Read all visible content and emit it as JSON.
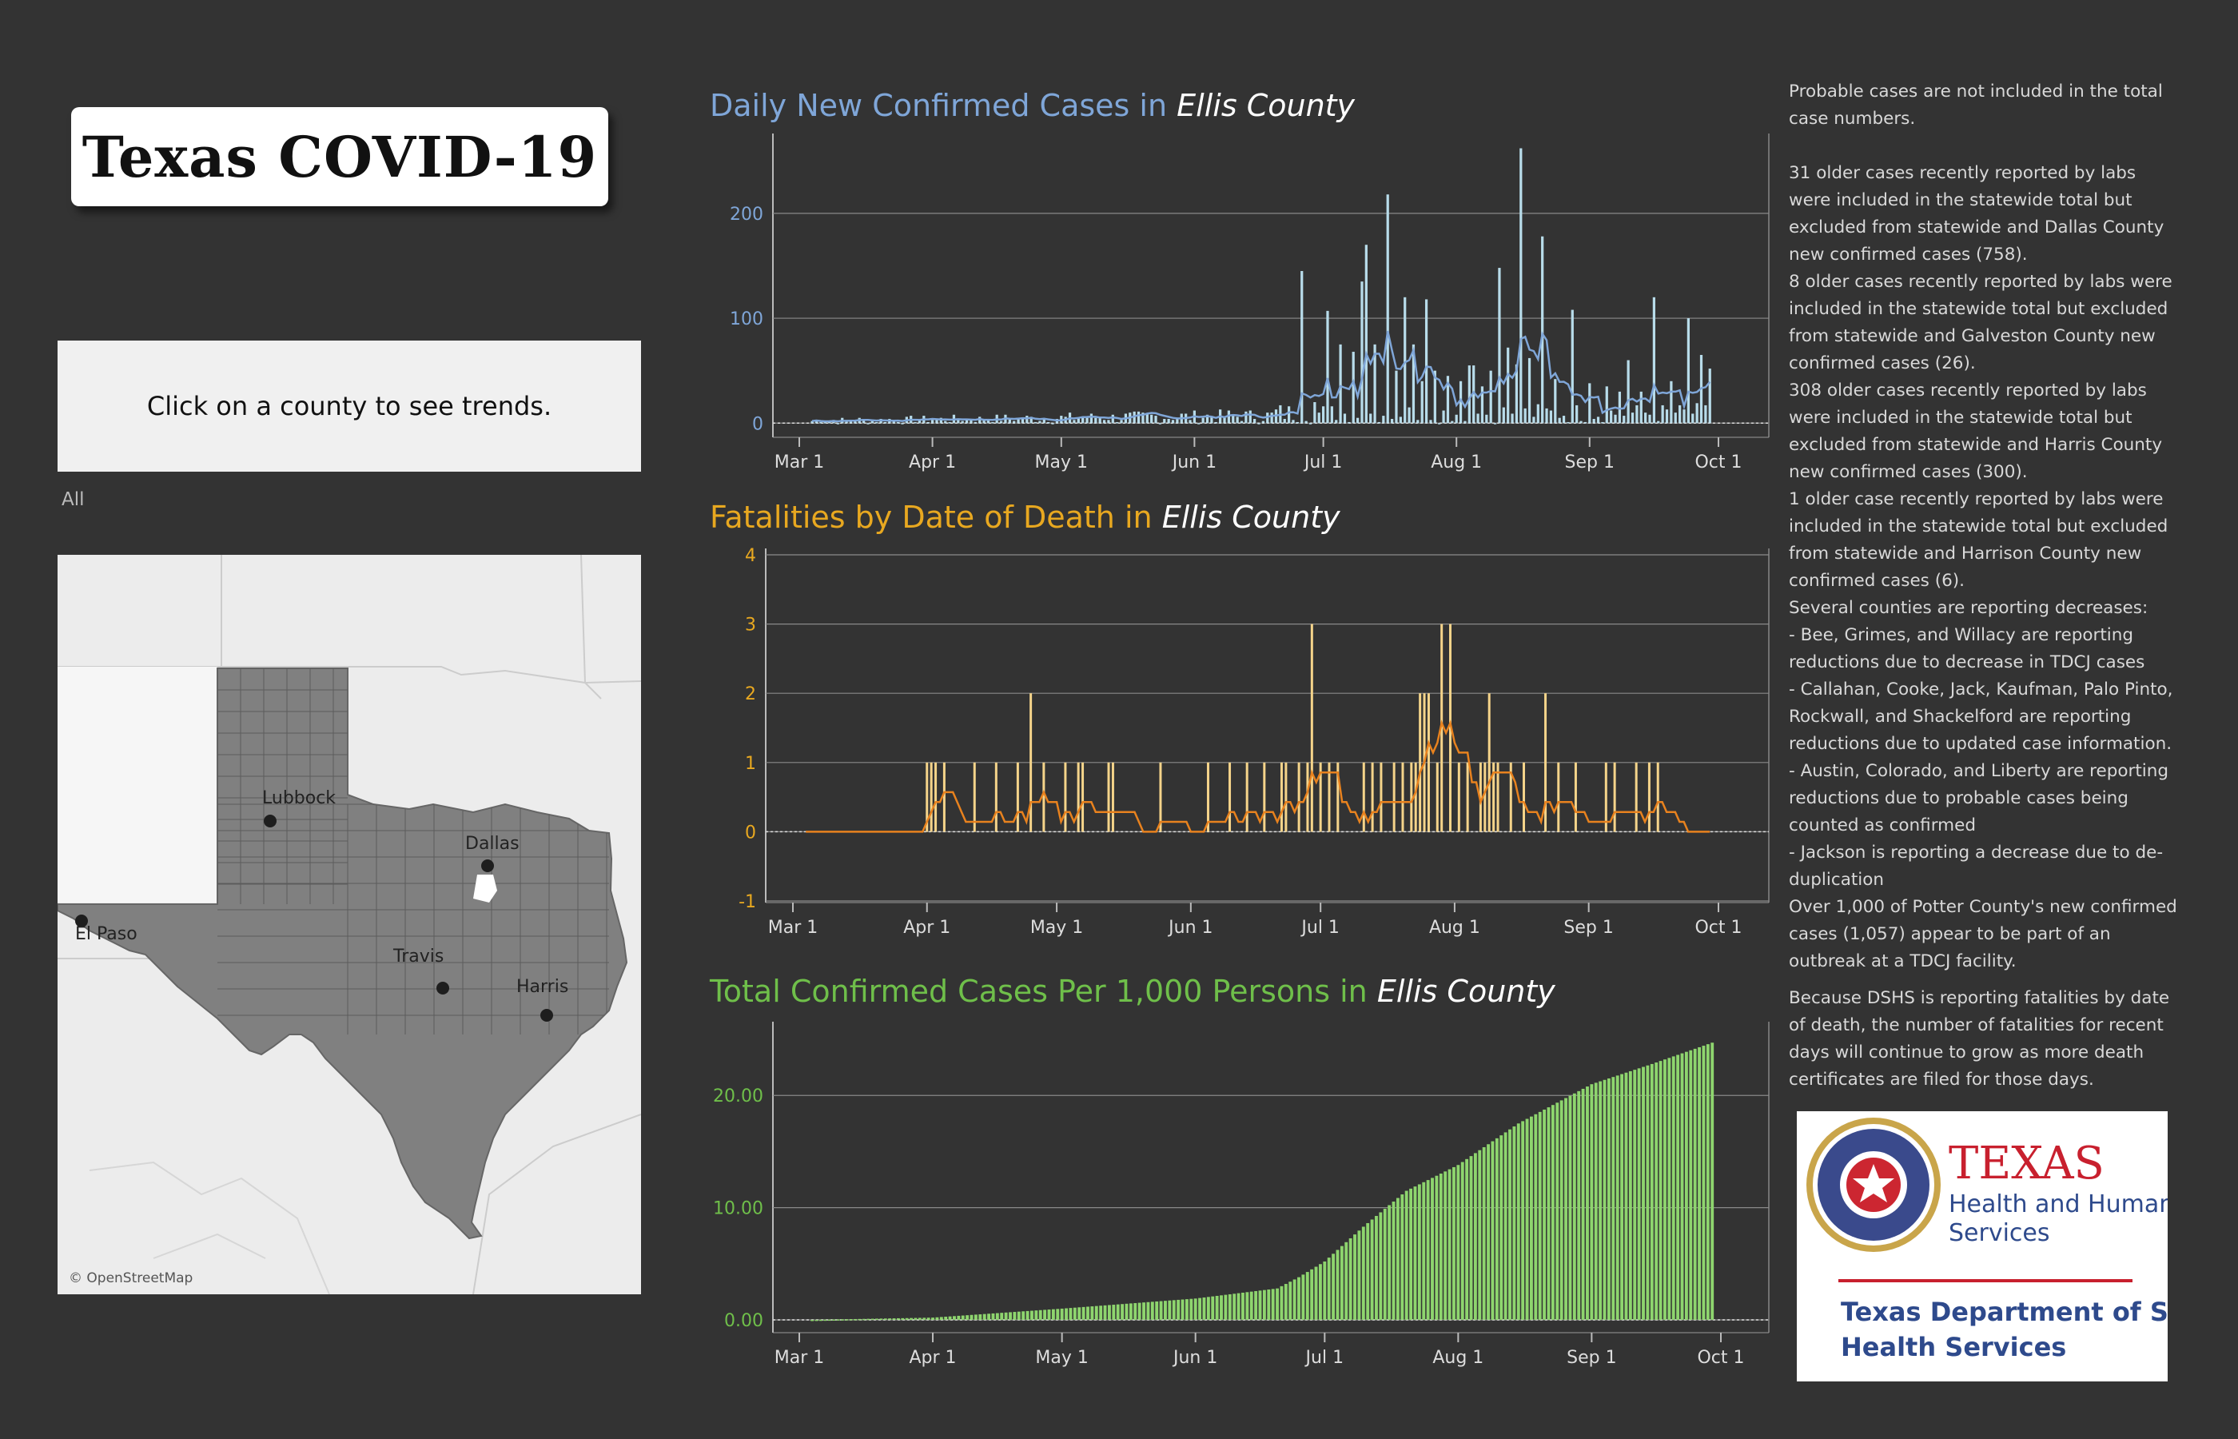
{
  "title": "Texas COVID-19",
  "instruction": "Click on a county to see trends.",
  "filter_label": "All",
  "map": {
    "attribution": "© OpenStreetMap",
    "cities": [
      "Lubbock",
      "Dallas",
      "El Paso",
      "Travis",
      "Harris"
    ]
  },
  "charts": {
    "daily": {
      "prefix": "Daily New Confirmed Cases in ",
      "county": "Ellis County",
      "color": "#7fa6d8"
    },
    "deaths": {
      "prefix": "Fatalities by Date of Death in ",
      "county": "Ellis County",
      "color": "#f0b020"
    },
    "total": {
      "prefix": "Total Confirmed Cases Per 1,000 Persons in ",
      "county": "Ellis County",
      "color": "#6fbf4a"
    }
  },
  "notes": [
    "Probable cases are not included in the total case numbers.",
    "31 older cases recently reported by labs were included in the statewide total but excluded from statewide and Dallas County new confirmed cases (758).",
    "8 older cases recently reported by labs were included in the statewide total but excluded from statewide and Galveston County new confirmed cases (26).",
    "308 older cases recently reported by labs were included in the statewide total but excluded from statewide and Harris County new confirmed cases (300).",
    "1 older case recently reported by labs were included in the statewide total but excluded from statewide and Harrison County new confirmed cases (6).",
    "Several counties are reporting decreases:",
    " - Bee, Grimes, and Willacy are reporting reductions due to decrease in TDCJ cases",
    " - Callahan, Cooke, Jack, Kaufman, Palo Pinto, Rockwall, and Shackelford are reporting reductions due to updated case information.",
    " - Austin, Colorado, and Liberty are reporting reductions due to probable cases being counted as confirmed",
    " - Jackson is reporting a decrease due to de-duplication",
    "Over 1,000 of Potter County's new confirmed cases (1,057) appear to be part of an outbreak at a TDCJ facility.",
    "Because DSHS is reporting fatalities by date of death, the number of fatalities for recent days will continue to grow as more death certificates are filed for those days."
  ],
  "logo": {
    "line1": "TEXAS",
    "line2": "Health and Human",
    "line3": "Services",
    "line4": "Texas Department of State",
    "line5": "Health Services"
  },
  "chart_data": [
    {
      "type": "bar",
      "title": "Daily New Confirmed Cases in Ellis County",
      "x_ticks": [
        "Mar 1",
        "Apr 1",
        "May 1",
        "Jun 1",
        "Jul 1",
        "Aug 1",
        "Sep 1",
        "Oct 1"
      ],
      "y_ticks": [
        0,
        100,
        200
      ],
      "ylim": [
        -10,
        280
      ],
      "x_range": [
        "2020-03-04",
        "2020-09-29"
      ],
      "bar_color": "#b8dcea",
      "line_color": "#7fa6d8",
      "grid": true,
      "spikes": [
        {
          "date": "2020-06-26",
          "value": 145
        },
        {
          "date": "2020-06-29",
          "value": 20
        },
        {
          "date": "2020-07-02",
          "value": 107
        },
        {
          "date": "2020-07-05",
          "value": 75
        },
        {
          "date": "2020-07-08",
          "value": 68
        },
        {
          "date": "2020-07-10",
          "value": 135
        },
        {
          "date": "2020-07-11",
          "value": 170
        },
        {
          "date": "2020-07-13",
          "value": 75
        },
        {
          "date": "2020-07-16",
          "value": 218
        },
        {
          "date": "2020-07-18",
          "value": 50
        },
        {
          "date": "2020-07-20",
          "value": 120
        },
        {
          "date": "2020-07-22",
          "value": 75
        },
        {
          "date": "2020-07-24",
          "value": 40
        },
        {
          "date": "2020-07-25",
          "value": 118
        },
        {
          "date": "2020-07-27",
          "value": 50
        },
        {
          "date": "2020-07-30",
          "value": 45
        },
        {
          "date": "2020-08-02",
          "value": 40
        },
        {
          "date": "2020-08-04",
          "value": 55
        },
        {
          "date": "2020-08-05",
          "value": 55
        },
        {
          "date": "2020-08-07",
          "value": 35
        },
        {
          "date": "2020-08-09",
          "value": 50
        },
        {
          "date": "2020-08-11",
          "value": 148
        },
        {
          "date": "2020-08-13",
          "value": 72
        },
        {
          "date": "2020-08-15",
          "value": 56
        },
        {
          "date": "2020-08-16",
          "value": 262
        },
        {
          "date": "2020-08-18",
          "value": 62
        },
        {
          "date": "2020-08-21",
          "value": 178
        },
        {
          "date": "2020-08-24",
          "value": 42
        },
        {
          "date": "2020-08-28",
          "value": 108
        },
        {
          "date": "2020-09-01",
          "value": 38
        },
        {
          "date": "2020-09-05",
          "value": 35
        },
        {
          "date": "2020-09-08",
          "value": 30
        },
        {
          "date": "2020-09-10",
          "value": 60
        },
        {
          "date": "2020-09-13",
          "value": 30
        },
        {
          "date": "2020-09-16",
          "value": 120
        },
        {
          "date": "2020-09-20",
          "value": 40
        },
        {
          "date": "2020-09-24",
          "value": 100
        },
        {
          "date": "2020-09-27",
          "value": 65
        },
        {
          "date": "2020-09-29",
          "value": 52
        }
      ]
    },
    {
      "type": "bar",
      "title": "Fatalities by Date of Death in Ellis County",
      "x_ticks": [
        "Mar 1",
        "Apr 1",
        "May 1",
        "Jun 1",
        "Jul 1",
        "Aug 1",
        "Sep 1",
        "Oct 1"
      ],
      "y_ticks": [
        -1,
        0,
        1,
        2,
        3,
        4
      ],
      "ylim": [
        -1,
        4
      ],
      "x_range": [
        "2020-03-04",
        "2020-09-29"
      ],
      "bar_color": "#f5d48a",
      "line_color": "#e8821e",
      "grid": true,
      "deaths": [
        {
          "date": "2020-04-01",
          "value": 1
        },
        {
          "date": "2020-04-02",
          "value": 1
        },
        {
          "date": "2020-04-03",
          "value": 1
        },
        {
          "date": "2020-04-05",
          "value": 1
        },
        {
          "date": "2020-04-12",
          "value": 1
        },
        {
          "date": "2020-04-17",
          "value": 1
        },
        {
          "date": "2020-04-22",
          "value": 1
        },
        {
          "date": "2020-04-25",
          "value": 2
        },
        {
          "date": "2020-04-28",
          "value": 1
        },
        {
          "date": "2020-05-03",
          "value": 1
        },
        {
          "date": "2020-05-06",
          "value": 1
        },
        {
          "date": "2020-05-07",
          "value": 1
        },
        {
          "date": "2020-05-13",
          "value": 1
        },
        {
          "date": "2020-05-14",
          "value": 1
        },
        {
          "date": "2020-05-25",
          "value": 1
        },
        {
          "date": "2020-06-05",
          "value": 1
        },
        {
          "date": "2020-06-10",
          "value": 1
        },
        {
          "date": "2020-06-14",
          "value": 1
        },
        {
          "date": "2020-06-18",
          "value": 1
        },
        {
          "date": "2020-06-22",
          "value": 1
        },
        {
          "date": "2020-06-23",
          "value": 1
        },
        {
          "date": "2020-06-26",
          "value": 1
        },
        {
          "date": "2020-06-28",
          "value": 1
        },
        {
          "date": "2020-06-29",
          "value": 3
        },
        {
          "date": "2020-07-01",
          "value": 1
        },
        {
          "date": "2020-07-03",
          "value": 1
        },
        {
          "date": "2020-07-05",
          "value": 1
        },
        {
          "date": "2020-07-11",
          "value": 1
        },
        {
          "date": "2020-07-13",
          "value": 1
        },
        {
          "date": "2020-07-15",
          "value": 1
        },
        {
          "date": "2020-07-18",
          "value": 1
        },
        {
          "date": "2020-07-20",
          "value": 1
        },
        {
          "date": "2020-07-22",
          "value": 1
        },
        {
          "date": "2020-07-23",
          "value": 1
        },
        {
          "date": "2020-07-24",
          "value": 2
        },
        {
          "date": "2020-07-25",
          "value": 2
        },
        {
          "date": "2020-07-26",
          "value": 2
        },
        {
          "date": "2020-07-28",
          "value": 1
        },
        {
          "date": "2020-07-29",
          "value": 3
        },
        {
          "date": "2020-07-31",
          "value": 3
        },
        {
          "date": "2020-08-02",
          "value": 1
        },
        {
          "date": "2020-08-04",
          "value": 1
        },
        {
          "date": "2020-08-07",
          "value": 1
        },
        {
          "date": "2020-08-08",
          "value": 1
        },
        {
          "date": "2020-08-09",
          "value": 2
        },
        {
          "date": "2020-08-10",
          "value": 1
        },
        {
          "date": "2020-08-11",
          "value": 1
        },
        {
          "date": "2020-08-14",
          "value": 1
        },
        {
          "date": "2020-08-17",
          "value": 1
        },
        {
          "date": "2020-08-22",
          "value": 2
        },
        {
          "date": "2020-08-25",
          "value": 1
        },
        {
          "date": "2020-08-29",
          "value": 1
        },
        {
          "date": "2020-09-05",
          "value": 1
        },
        {
          "date": "2020-09-07",
          "value": 1
        },
        {
          "date": "2020-09-12",
          "value": 1
        },
        {
          "date": "2020-09-15",
          "value": 1
        },
        {
          "date": "2020-09-17",
          "value": 1
        }
      ]
    },
    {
      "type": "bar",
      "title": "Total Confirmed Cases Per 1,000 Persons in Ellis County",
      "x_ticks": [
        "Mar 1",
        "Apr 1",
        "May 1",
        "Jun 1",
        "Jul 1",
        "Aug 1",
        "Sep 1",
        "Oct 1"
      ],
      "y_ticks": [
        "0.00",
        "10.00",
        "20.00"
      ],
      "ylim": [
        -1,
        26
      ],
      "x_range": [
        "2020-03-04",
        "2020-09-29"
      ],
      "bar_color": "#8ed56e",
      "grid": true,
      "cumulative_anchors": [
        {
          "date": "2020-03-04",
          "value": 0.0
        },
        {
          "date": "2020-04-01",
          "value": 0.2
        },
        {
          "date": "2020-05-01",
          "value": 1.0
        },
        {
          "date": "2020-06-01",
          "value": 1.9
        },
        {
          "date": "2020-06-20",
          "value": 2.8
        },
        {
          "date": "2020-06-25",
          "value": 3.8
        },
        {
          "date": "2020-07-01",
          "value": 5.2
        },
        {
          "date": "2020-07-10",
          "value": 8.3
        },
        {
          "date": "2020-07-20",
          "value": 11.5
        },
        {
          "date": "2020-08-01",
          "value": 13.8
        },
        {
          "date": "2020-08-15",
          "value": 17.5
        },
        {
          "date": "2020-09-01",
          "value": 21.0
        },
        {
          "date": "2020-09-15",
          "value": 22.8
        },
        {
          "date": "2020-09-29",
          "value": 24.7
        }
      ]
    }
  ]
}
